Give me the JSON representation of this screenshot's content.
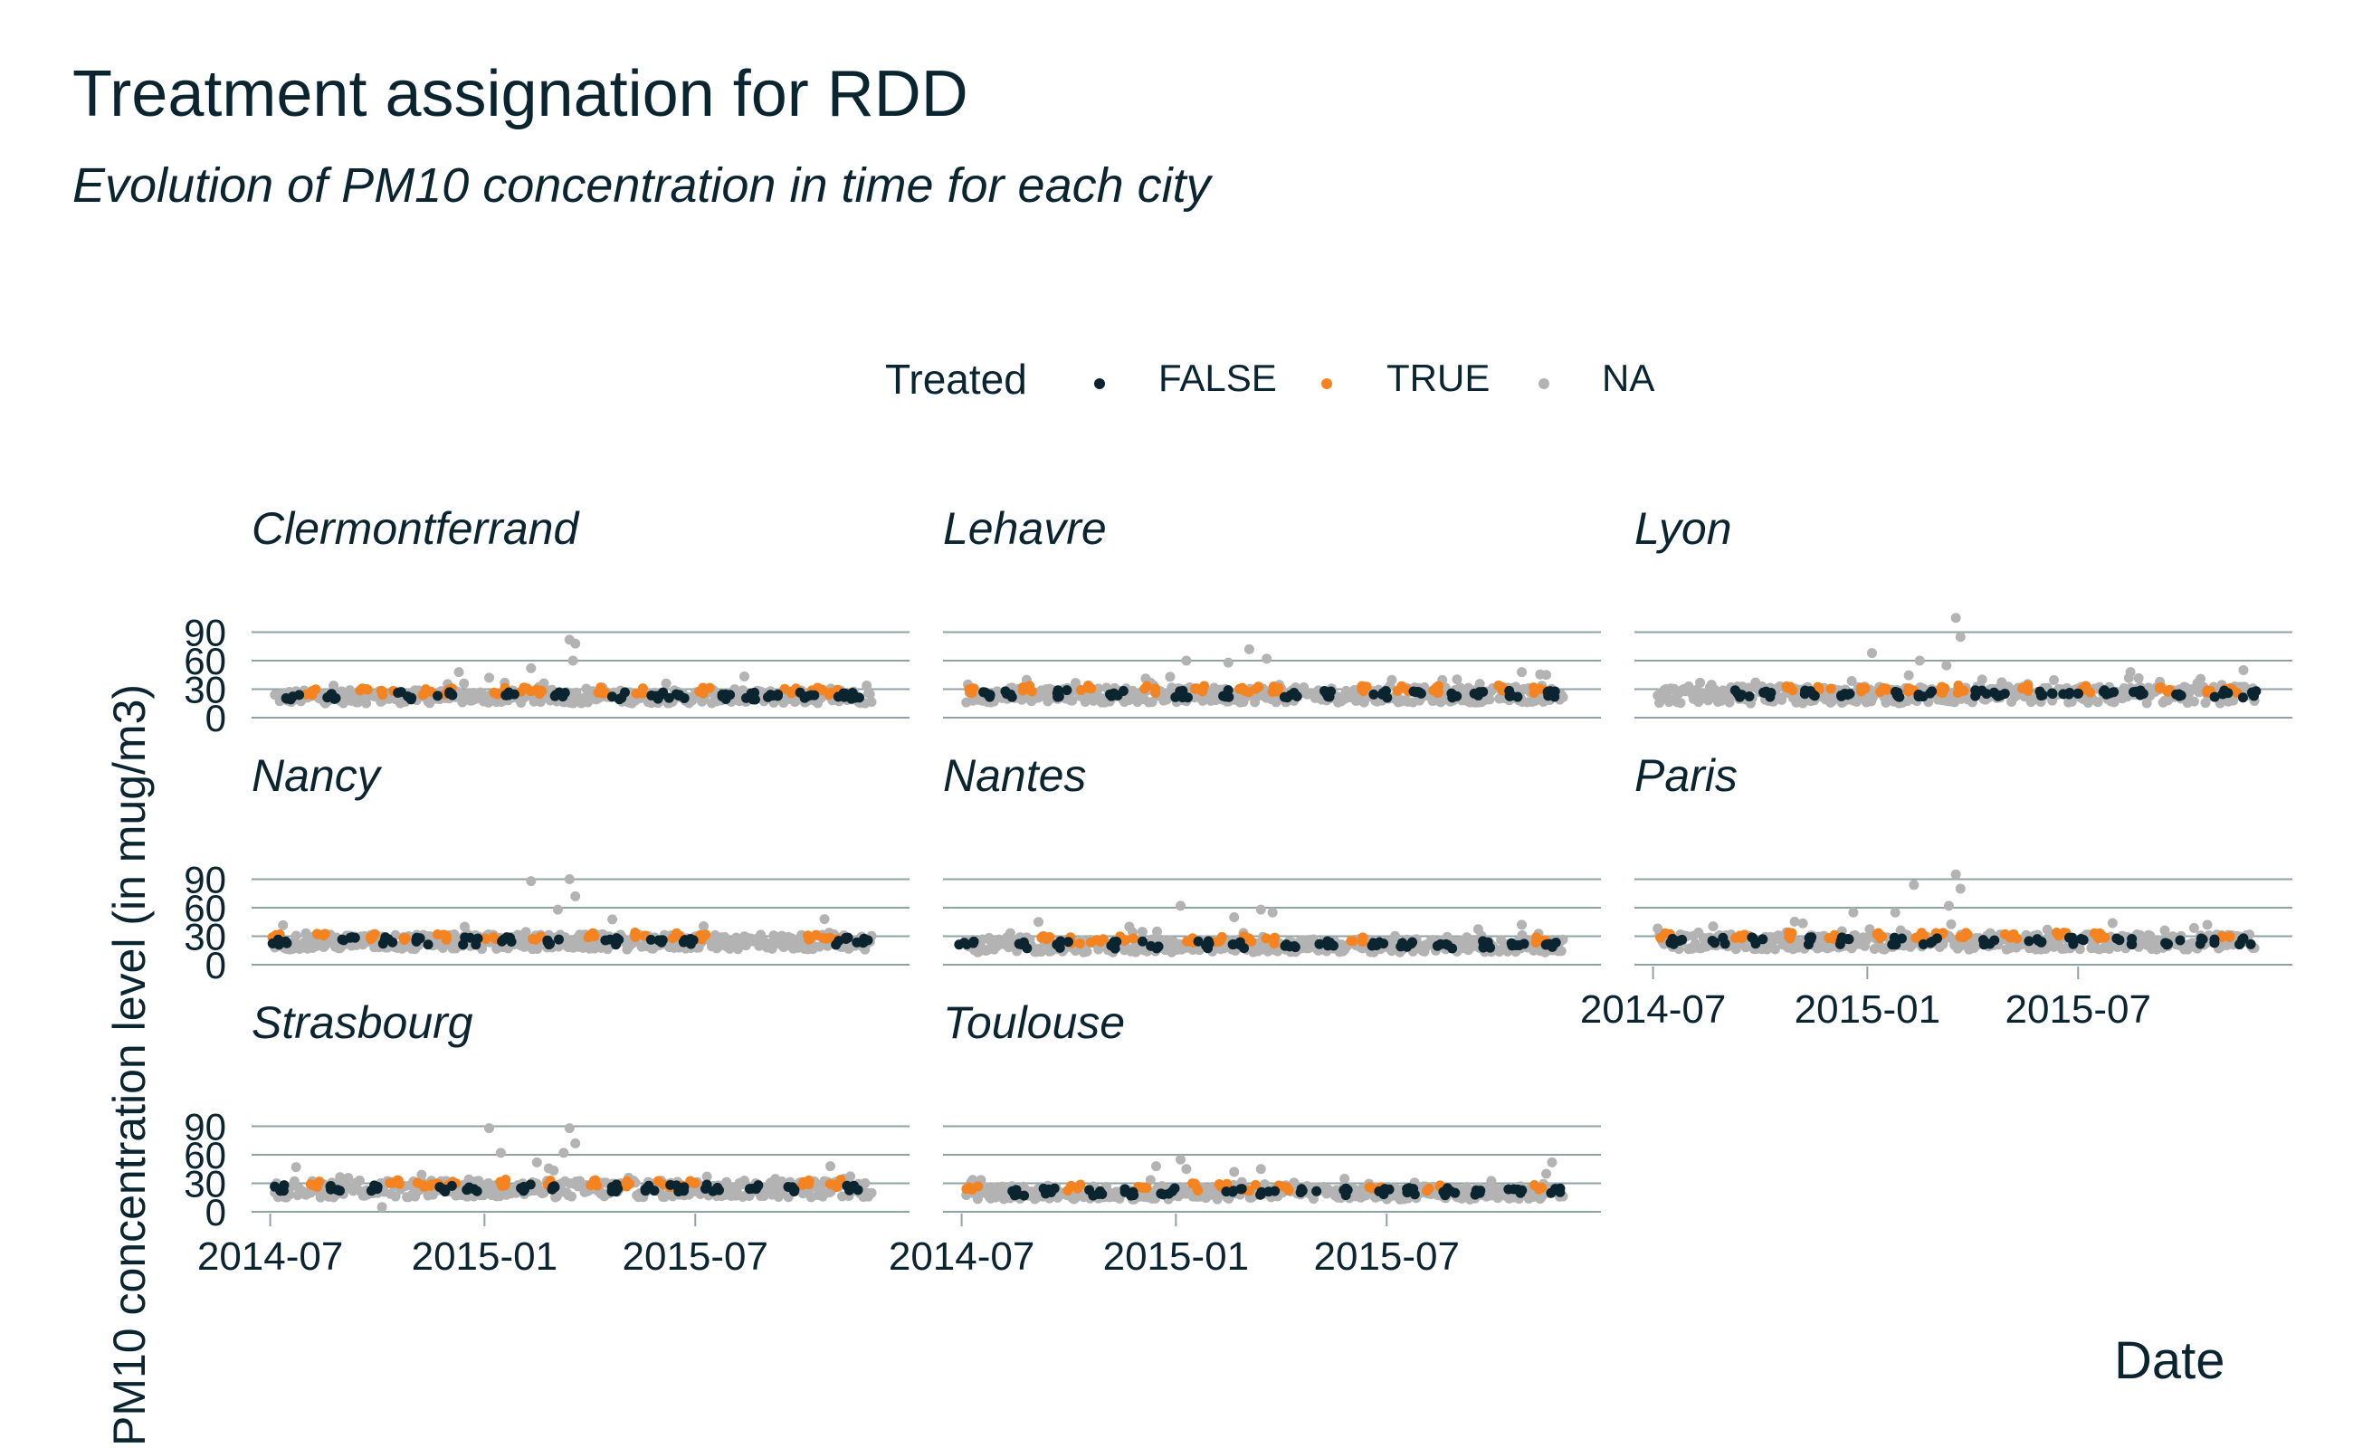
{
  "chart_data": {
    "type": "scatter",
    "title": "Treatment assignation for RDD",
    "subtitle": "Evolution of PM10 concentration in time for each city",
    "xlabel": "Date",
    "ylabel": "PM10 concentration level (in mug/m3)",
    "y_ticks": [
      0,
      30,
      60,
      90
    ],
    "ylim": [
      0,
      100
    ],
    "x_ticks": [
      "2014-07",
      "2015-01",
      "2015-07"
    ],
    "xlim": [
      "2014-06-15",
      "2016-01-01"
    ],
    "legend": {
      "title": "Treated",
      "position": "top",
      "entries": [
        {
          "label": "FALSE",
          "color": "#0b2530"
        },
        {
          "label": "TRUE",
          "color": "#f58320"
        },
        {
          "label": "NA",
          "color": "#b3b3b3"
        }
      ]
    },
    "colors": {
      "FALSE": "#0b2530",
      "TRUE": "#f58320",
      "NA": "#b3b3b3",
      "grid": "#8fa3a7"
    },
    "facets": [
      {
        "name": "Clermontferrand",
        "base": 22,
        "noise": 7,
        "spikes": [
          [
            "2014-12-10",
            48
          ],
          [
            "2015-01-05",
            42
          ],
          [
            "2015-02-10",
            52
          ],
          [
            "2015-03-15",
            82
          ],
          [
            "2015-03-20",
            78
          ],
          [
            "2015-03-18",
            60
          ]
        ],
        "true_dates": [
          "2014-08-05",
          "2014-09-20",
          "2014-10-10",
          "2014-11-15",
          "2014-12-01",
          "2015-01-15",
          "2015-02-05",
          "2015-02-20",
          "2015-04-10",
          "2015-05-15",
          "2015-07-10",
          "2015-09-20",
          "2015-10-15",
          "2015-10-28"
        ],
        "false_dates": [
          "2014-07-20",
          "2014-08-25",
          "2014-10-25",
          "2014-11-28",
          "2015-01-25",
          "2015-03-05",
          "2015-04-25",
          "2015-05-30",
          "2015-06-15",
          "2015-07-25",
          "2015-08-20",
          "2015-09-05",
          "2015-10-05",
          "2015-11-05",
          "2015-11-15"
        ]
      },
      {
        "name": "Lehavre",
        "base": 24,
        "noise": 8,
        "spikes": [
          [
            "2015-01-10",
            60
          ],
          [
            "2015-02-15",
            58
          ],
          [
            "2015-03-05",
            72
          ],
          [
            "2015-03-20",
            62
          ],
          [
            "2015-10-25",
            48
          ],
          [
            "2015-11-15",
            45
          ]
        ],
        "true_dates": [
          "2014-07-10",
          "2014-08-25",
          "2014-10-15",
          "2014-12-10",
          "2015-01-20",
          "2015-02-25",
          "2015-03-10",
          "2015-03-28",
          "2015-06-10",
          "2015-07-15",
          "2015-08-10",
          "2015-10-05",
          "2015-11-10"
        ],
        "false_dates": [
          "2014-07-25",
          "2014-08-10",
          "2014-09-25",
          "2014-11-10",
          "2015-01-05",
          "2015-02-10",
          "2015-04-10",
          "2015-05-10",
          "2015-06-25",
          "2015-07-28",
          "2015-08-25",
          "2015-09-20",
          "2015-10-20",
          "2015-11-22"
        ]
      },
      {
        "name": "Lyon",
        "base": 24,
        "noise": 9,
        "spikes": [
          [
            "2015-01-05",
            68
          ],
          [
            "2015-02-15",
            60
          ],
          [
            "2015-03-18",
            105
          ],
          [
            "2015-03-22",
            85
          ],
          [
            "2015-03-10",
            55
          ],
          [
            "2015-08-15",
            48
          ],
          [
            "2015-11-20",
            50
          ]
        ],
        "true_dates": [
          "2014-10-25",
          "2014-11-25",
          "2014-12-25",
          "2015-01-15",
          "2015-02-05",
          "2015-03-05",
          "2015-03-25",
          "2015-05-20",
          "2015-07-10",
          "2015-09-15",
          "2015-10-20",
          "2015-11-10"
        ],
        "false_dates": [
          "2014-09-15",
          "2014-10-05",
          "2014-11-10",
          "2014-12-10",
          "2015-01-25",
          "2015-02-20",
          "2015-04-10",
          "2015-04-25",
          "2015-06-05",
          "2015-06-25",
          "2015-07-25",
          "2015-08-20",
          "2015-09-30",
          "2015-11-01",
          "2015-11-25"
        ]
      },
      {
        "name": "Nancy",
        "base": 24,
        "noise": 8,
        "spikes": [
          [
            "2014-12-15",
            40
          ],
          [
            "2015-02-10",
            88
          ],
          [
            "2015-03-15",
            90
          ],
          [
            "2015-03-20",
            72
          ],
          [
            "2015-03-05",
            58
          ],
          [
            "2015-10-20",
            48
          ]
        ],
        "true_dates": [
          "2014-07-05",
          "2014-08-15",
          "2014-09-25",
          "2014-10-25",
          "2014-11-25",
          "2015-01-05",
          "2015-02-15",
          "2015-04-05",
          "2015-05-15",
          "2015-06-15",
          "2015-07-05",
          "2015-10-10",
          "2015-10-25"
        ],
        "false_dates": [
          "2014-07-10",
          "2014-09-05",
          "2014-10-10",
          "2014-11-10",
          "2014-12-20",
          "2015-01-20",
          "2015-03-01",
          "2015-04-20",
          "2015-05-30",
          "2015-06-25",
          "2015-11-05",
          "2015-11-20"
        ]
      },
      {
        "name": "Nantes",
        "base": 20,
        "noise": 7,
        "spikes": [
          [
            "2014-09-05",
            45
          ],
          [
            "2015-01-05",
            62
          ],
          [
            "2015-02-20",
            50
          ],
          [
            "2015-03-15",
            58
          ],
          [
            "2015-03-25",
            55
          ],
          [
            "2015-10-25",
            42
          ]
        ],
        "true_dates": [
          "2014-09-10",
          "2014-10-05",
          "2014-10-25",
          "2014-11-20",
          "2015-01-15",
          "2015-02-10",
          "2015-03-05",
          "2015-03-25",
          "2015-06-05",
          "2015-11-10"
        ],
        "false_dates": [
          "2014-07-05",
          "2014-08-20",
          "2014-09-25",
          "2014-11-05",
          "2014-12-10",
          "2015-01-25",
          "2015-02-25",
          "2015-04-10",
          "2015-05-10",
          "2015-06-25",
          "2015-07-20",
          "2015-08-20",
          "2015-09-25",
          "2015-10-20",
          "2015-11-20"
        ]
      },
      {
        "name": "Paris",
        "base": 24,
        "noise": 8,
        "spikes": [
          [
            "2014-12-20",
            55
          ],
          [
            "2015-01-25",
            55
          ],
          [
            "2015-02-10",
            84
          ],
          [
            "2015-03-18",
            95
          ],
          [
            "2015-03-22",
            80
          ],
          [
            "2015-03-12",
            62
          ],
          [
            "2015-10-20",
            42
          ]
        ],
        "true_dates": [
          "2014-07-10",
          "2014-09-15",
          "2014-10-25",
          "2014-12-05",
          "2015-01-10",
          "2015-02-15",
          "2015-03-05",
          "2015-03-25",
          "2015-05-05",
          "2015-06-15",
          "2015-07-20",
          "2015-11-05"
        ],
        "false_dates": [
          "2014-07-20",
          "2014-08-25",
          "2014-09-30",
          "2014-11-10",
          "2014-12-15",
          "2015-01-25",
          "2015-02-25",
          "2015-04-15",
          "2015-05-25",
          "2015-06-30",
          "2015-08-10",
          "2015-09-20",
          "2015-10-20",
          "2015-11-20"
        ]
      },
      {
        "name": "Strasbourg",
        "base": 24,
        "noise": 9,
        "spikes": [
          [
            "2014-10-05",
            5
          ],
          [
            "2015-01-05",
            88
          ],
          [
            "2015-01-15",
            62
          ],
          [
            "2015-02-15",
            52
          ],
          [
            "2015-03-10",
            62
          ],
          [
            "2015-03-15",
            88
          ],
          [
            "2015-03-20",
            72
          ],
          [
            "2015-10-25",
            48
          ]
        ],
        "true_dates": [
          "2014-08-10",
          "2014-10-15",
          "2014-11-05",
          "2014-11-20",
          "2014-12-05",
          "2015-01-20",
          "2015-03-01",
          "2015-04-05",
          "2015-05-05",
          "2015-06-05",
          "2015-06-25",
          "2015-10-05",
          "2015-10-30"
        ],
        "false_dates": [
          "2014-07-10",
          "2014-08-25",
          "2014-09-30",
          "2014-11-30",
          "2014-12-20",
          "2015-02-05",
          "2015-02-25",
          "2015-04-20",
          "2015-05-20",
          "2015-06-15",
          "2015-07-15",
          "2015-08-20",
          "2015-09-25",
          "2015-11-15"
        ]
      },
      {
        "name": "Toulouse",
        "base": 20,
        "noise": 7,
        "spikes": [
          [
            "2014-12-15",
            48
          ],
          [
            "2015-01-05",
            55
          ],
          [
            "2015-01-10",
            45
          ],
          [
            "2015-02-20",
            42
          ],
          [
            "2015-03-15",
            45
          ],
          [
            "2015-11-20",
            52
          ],
          [
            "2015-11-15",
            40
          ]
        ],
        "true_dates": [
          "2014-07-10",
          "2014-10-05",
          "2014-12-05",
          "2015-01-15",
          "2015-02-10",
          "2015-03-05",
          "2015-04-05",
          "2015-06-20",
          "2015-08-10",
          "2015-11-10"
        ],
        "false_dates": [
          "2014-08-20",
          "2014-09-15",
          "2014-10-25",
          "2014-11-20",
          "2014-12-25",
          "2015-02-20",
          "2015-03-20",
          "2015-04-25",
          "2015-05-25",
          "2015-06-30",
          "2015-07-25",
          "2015-08-25",
          "2015-09-20",
          "2015-10-20",
          "2015-11-25"
        ]
      }
    ]
  }
}
